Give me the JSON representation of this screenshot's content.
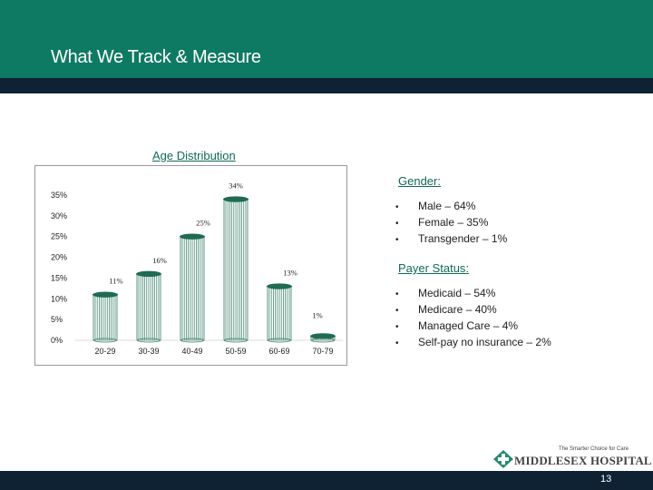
{
  "slide": {
    "title": "What We Track & Measure",
    "page_number": "13"
  },
  "colors": {
    "header": "#0f7a63",
    "header_dark": "#0f2233",
    "heading_text": "#0f6a58",
    "bar_fill": "#ffffff",
    "bar_stripes": "#2e7a62",
    "bar_cap": "#1f6b54"
  },
  "chart_data": {
    "type": "bar",
    "title": "Age Distribution",
    "categories": [
      "20-29",
      "30-39",
      "40-49",
      "50-59",
      "60-69",
      "70-79"
    ],
    "values": [
      11,
      16,
      25,
      34,
      13,
      1
    ],
    "data_labels": [
      "11%",
      "16%",
      "25%",
      "34%",
      "13%",
      "1%"
    ],
    "y_ticks": [
      "0%",
      "5%",
      "10%",
      "15%",
      "20%",
      "25%",
      "30%",
      "35%"
    ],
    "ylim": [
      0,
      35
    ],
    "xlabel": "",
    "ylabel": "",
    "grid": false,
    "legend": false
  },
  "gender": {
    "heading": "Gender",
    "items": [
      "Male – 64%",
      "Female – 35%",
      "Transgender – 1%"
    ]
  },
  "payer": {
    "heading": "Payer Status",
    "items": [
      "Medicaid – 54%",
      "Medicare – 40%",
      "Managed Care – 4%",
      "Self-pay no insurance – 2%"
    ]
  },
  "logo": {
    "tagline": "The Smarter Choice for Care",
    "name": "MIDDLESEX HOSPITAL",
    "icon": "middlesex-hospital-logo-icon"
  }
}
